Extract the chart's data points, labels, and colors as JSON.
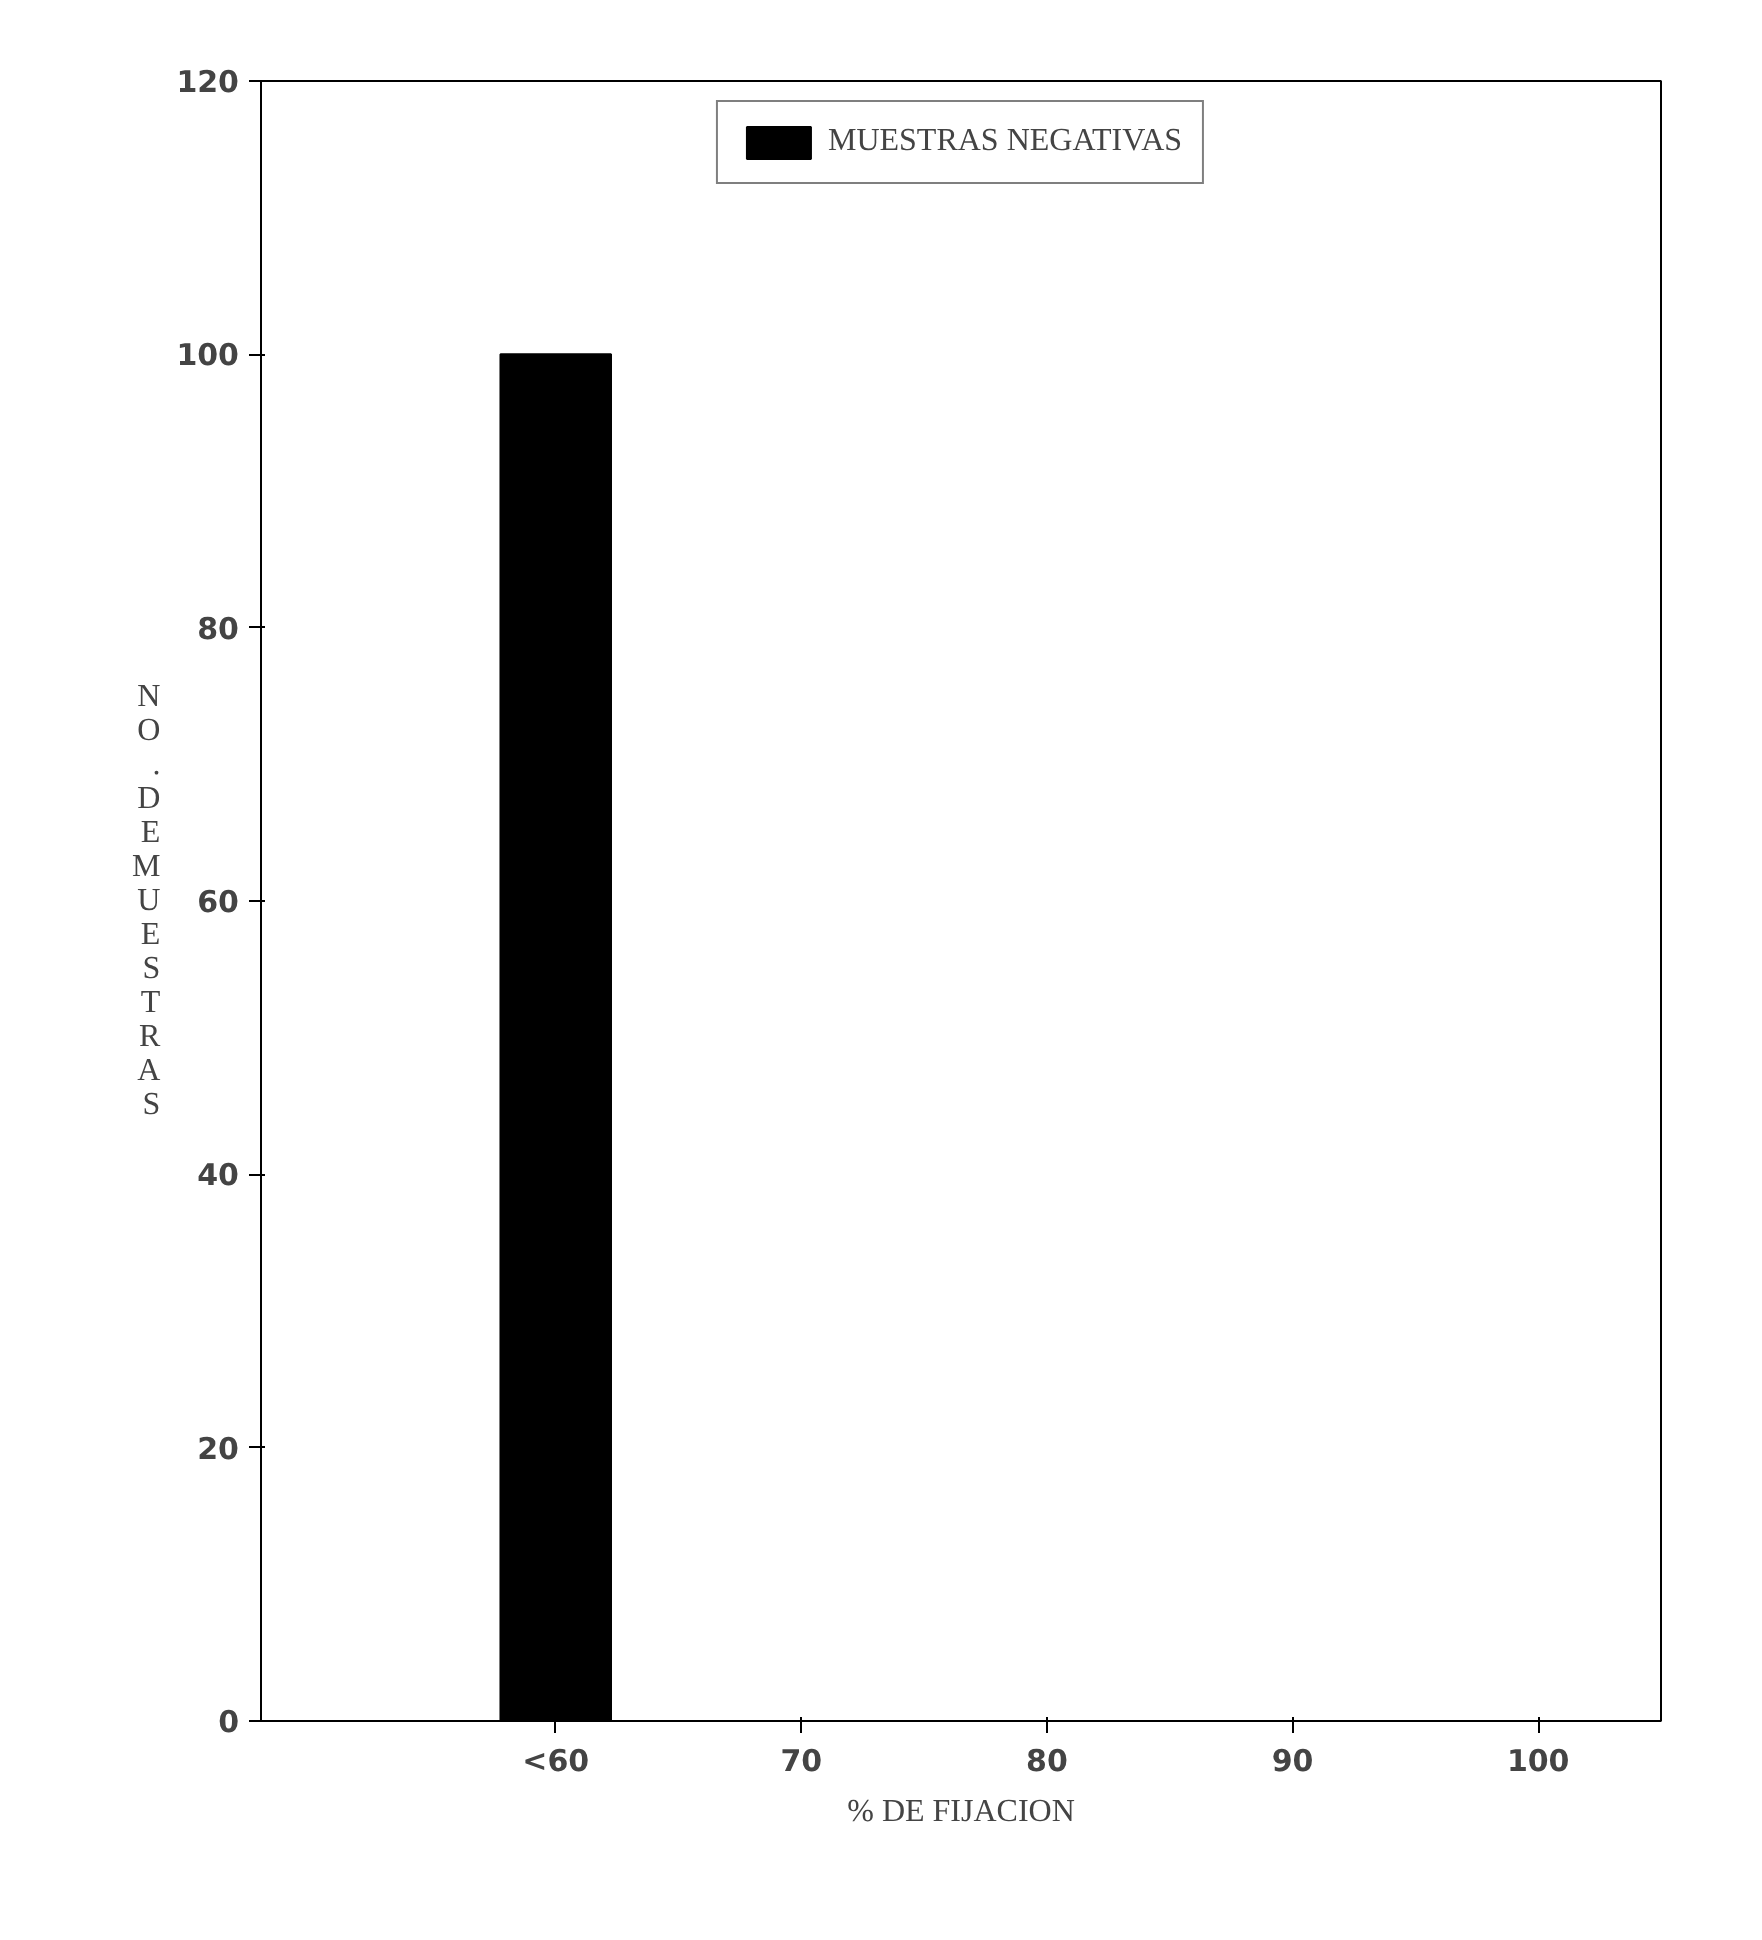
{
  "chart_data": {
    "type": "bar",
    "xlabel": "% DE FIJACION",
    "ylabel": "NO. DE MUESTRAS",
    "categories": [
      "<60",
      "70",
      "80",
      "90",
      "100"
    ],
    "series": [
      {
        "name": "MUESTRAS NEGATIVAS",
        "color": "#000000",
        "values": [
          100,
          0,
          0,
          0,
          0
        ]
      }
    ],
    "ylim": [
      0,
      120
    ],
    "yticks": [
      0,
      20,
      40,
      60,
      80,
      100,
      120
    ],
    "grid": false,
    "legend": "top"
  }
}
